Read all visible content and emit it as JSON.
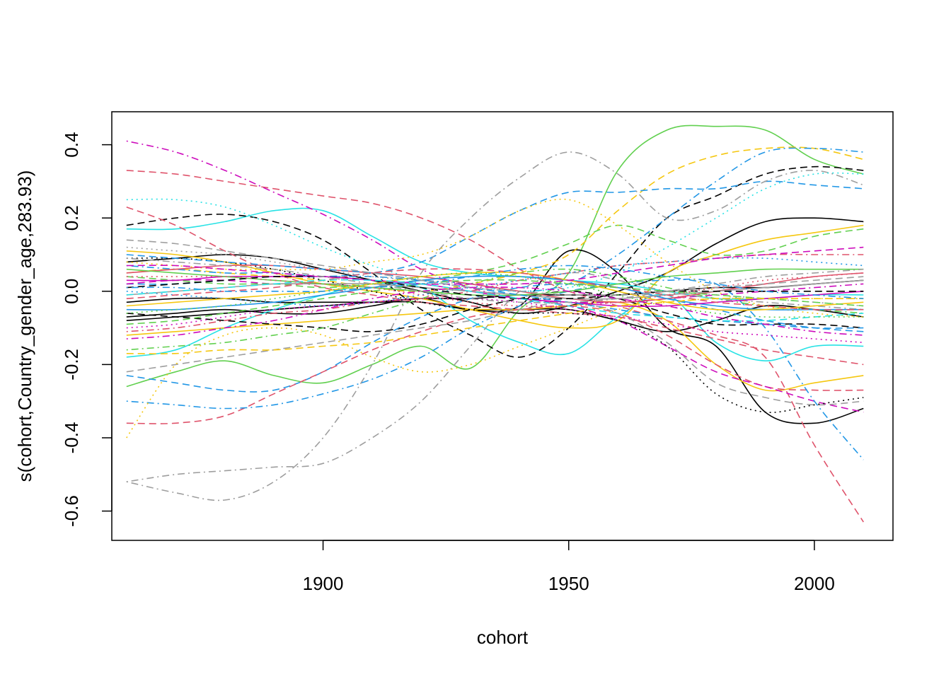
{
  "chart_data": {
    "type": "line",
    "title": "",
    "xlabel": "cohort",
    "ylabel": "s(cohort,Country_gender_age,283.93)",
    "xlim": [
      1857,
      2016
    ],
    "ylim": [
      -0.68,
      0.49
    ],
    "x_ticks": [
      1900,
      1950,
      2000
    ],
    "y_ticks": [
      -0.6,
      -0.4,
      -0.2,
      0.0,
      0.2,
      0.4
    ],
    "y_tick_labels": [
      "-0.6",
      "-0.4",
      "-0.2",
      "0.0",
      "0.2",
      "0.4"
    ],
    "grid": false,
    "legend": "none",
    "x": [
      1860,
      1870,
      1880,
      1890,
      1900,
      1910,
      1920,
      1930,
      1940,
      1950,
      1960,
      1970,
      1980,
      1990,
      2000,
      2010
    ],
    "series": [
      {
        "color": "#61d04f",
        "dash": "solid",
        "values": [
          -0.26,
          -0.22,
          -0.19,
          -0.23,
          -0.25,
          -0.2,
          -0.15,
          -0.21,
          -0.05,
          0.05,
          0.33,
          0.44,
          0.45,
          0.44,
          0.36,
          0.32
        ]
      },
      {
        "color": "#000000",
        "dash": "solid",
        "values": [
          -0.07,
          -0.06,
          -0.05,
          -0.06,
          -0.06,
          -0.04,
          -0.02,
          -0.05,
          -0.04,
          0.11,
          0.05,
          -0.1,
          -0.15,
          -0.33,
          -0.36,
          -0.32
        ]
      },
      {
        "color": "#000000",
        "dash": "solid",
        "values": [
          -0.08,
          -0.07,
          -0.06,
          -0.05,
          -0.04,
          -0.03,
          -0.02,
          -0.02,
          -0.01,
          -0.01,
          -0.01,
          0.0,
          0.01,
          0.01,
          0.02,
          0.03
        ]
      },
      {
        "color": "#000000",
        "dash": "solid",
        "values": [
          0.08,
          0.09,
          0.1,
          0.09,
          0.06,
          0.03,
          0.0,
          -0.03,
          -0.06,
          -0.04,
          0.0,
          0.05,
          0.13,
          0.19,
          0.2,
          0.19
        ]
      },
      {
        "color": "#000000",
        "dash": "solid",
        "values": [
          -0.03,
          -0.02,
          -0.02,
          -0.03,
          -0.03,
          -0.03,
          -0.03,
          -0.05,
          -0.05,
          -0.05,
          -0.08,
          -0.11,
          -0.08,
          -0.04,
          -0.05,
          -0.07
        ]
      },
      {
        "color": "#28e2e5",
        "dash": "solid",
        "values": [
          -0.18,
          -0.16,
          -0.1,
          -0.05,
          -0.01,
          0.02,
          0.01,
          -0.08,
          -0.14,
          -0.17,
          -0.07,
          -0.01,
          -0.14,
          -0.19,
          -0.15,
          -0.15
        ]
      },
      {
        "color": "#28e2e5",
        "dash": "solid",
        "values": [
          0.17,
          0.17,
          0.19,
          0.22,
          0.22,
          0.15,
          0.08,
          0.05,
          0.04,
          0.03,
          0.02,
          0.0,
          -0.02,
          -0.02,
          -0.01,
          -0.01
        ]
      },
      {
        "color": "#f5c710",
        "dash": "solid",
        "values": [
          0.11,
          0.1,
          0.08,
          0.05,
          0.02,
          0.0,
          -0.02,
          -0.05,
          -0.08,
          -0.1,
          -0.08,
          0.05,
          0.1,
          0.14,
          0.16,
          0.18
        ]
      },
      {
        "color": "#f5c710",
        "dash": "solid",
        "values": [
          -0.12,
          -0.11,
          -0.1,
          -0.09,
          -0.08,
          -0.07,
          -0.06,
          -0.05,
          -0.05,
          -0.04,
          -0.03,
          -0.08,
          -0.2,
          -0.27,
          -0.25,
          -0.23
        ]
      },
      {
        "color": "#000000",
        "dash": "dashed",
        "values": [
          0.18,
          0.2,
          0.21,
          0.19,
          0.14,
          0.05,
          -0.05,
          -0.12,
          -0.18,
          -0.1,
          0.05,
          0.2,
          0.26,
          0.32,
          0.34,
          0.33
        ]
      },
      {
        "color": "#000000",
        "dash": "dashed",
        "values": [
          -0.06,
          -0.07,
          -0.08,
          -0.09,
          -0.1,
          -0.11,
          -0.09,
          -0.05,
          -0.02,
          0.0,
          -0.02,
          -0.06,
          -0.09,
          -0.09,
          -0.09,
          -0.1
        ]
      },
      {
        "color": "#f5c710",
        "dash": "dashed",
        "values": [
          0.05,
          0.06,
          0.05,
          0.04,
          0.03,
          0.01,
          0.0,
          0.02,
          0.05,
          0.1,
          0.22,
          0.32,
          0.37,
          0.39,
          0.39,
          0.36
        ]
      },
      {
        "color": "#2297e6",
        "dash": "dashed",
        "values": [
          0.02,
          0.02,
          0.03,
          0.04,
          0.04,
          0.05,
          0.08,
          0.15,
          0.22,
          0.27,
          0.27,
          0.28,
          0.28,
          0.3,
          0.29,
          0.28
        ]
      },
      {
        "color": "#2297e6",
        "dash": "dashed",
        "values": [
          -0.23,
          -0.25,
          -0.27,
          -0.27,
          -0.22,
          -0.14,
          -0.07,
          -0.02,
          0.01,
          0.02,
          0.01,
          -0.02,
          -0.05,
          -0.08,
          -0.1,
          -0.11
        ]
      },
      {
        "color": "#df536b",
        "dash": "dashed",
        "values": [
          0.33,
          0.32,
          0.3,
          0.28,
          0.26,
          0.24,
          0.2,
          0.14,
          0.06,
          0.0,
          -0.04,
          -0.08,
          -0.12,
          -0.18,
          -0.42,
          -0.63
        ]
      },
      {
        "color": "#df536b",
        "dash": "dashed",
        "values": [
          0.23,
          0.18,
          0.11,
          0.05,
          0.01,
          -0.01,
          -0.03,
          -0.04,
          -0.05,
          -0.06,
          -0.07,
          -0.1,
          -0.13,
          -0.16,
          -0.18,
          -0.2
        ]
      },
      {
        "color": "#df536b",
        "dash": "dashed",
        "values": [
          -0.36,
          -0.36,
          -0.34,
          -0.28,
          -0.22,
          -0.16,
          -0.11,
          -0.07,
          -0.05,
          -0.04,
          -0.06,
          -0.12,
          -0.2,
          -0.26,
          -0.27,
          -0.27
        ]
      },
      {
        "color": "#cd0bbc",
        "dash": "dashed",
        "values": [
          0.02,
          0.03,
          0.03,
          0.02,
          0.02,
          0.01,
          0.0,
          -0.01,
          -0.02,
          -0.04,
          -0.08,
          -0.15,
          -0.22,
          -0.26,
          -0.3,
          -0.33
        ]
      },
      {
        "color": "#61d04f",
        "dash": "dashed",
        "values": [
          0.04,
          0.03,
          0.02,
          0.02,
          0.01,
          0.02,
          0.03,
          0.05,
          0.08,
          0.13,
          0.18,
          0.14,
          0.1,
          0.11,
          0.15,
          0.17
        ]
      },
      {
        "color": "#9e9e9e",
        "dash": "dashed",
        "values": [
          -0.22,
          -0.2,
          -0.18,
          -0.16,
          -0.14,
          -0.12,
          -0.1,
          -0.08,
          -0.05,
          -0.03,
          -0.06,
          -0.14,
          -0.25,
          -0.29,
          -0.31,
          -0.3
        ]
      },
      {
        "color": "#cd0bbc",
        "dash": "dashdot",
        "values": [
          0.41,
          0.38,
          0.33,
          0.27,
          0.21,
          0.14,
          0.06,
          0.01,
          -0.02,
          -0.03,
          -0.03,
          -0.02,
          -0.01,
          0.0,
          0.01,
          0.02
        ]
      },
      {
        "color": "#9e9e9e",
        "dash": "dashdot",
        "values": [
          -0.52,
          -0.55,
          -0.57,
          -0.52,
          -0.4,
          -0.2,
          0.05,
          0.2,
          0.31,
          0.38,
          0.32,
          0.2,
          0.22,
          0.3,
          0.33,
          0.29
        ]
      },
      {
        "color": "#9e9e9e",
        "dash": "dashdot",
        "values": [
          -0.52,
          -0.5,
          -0.49,
          -0.48,
          -0.47,
          -0.4,
          -0.3,
          -0.15,
          0.0,
          0.05,
          0.03,
          0.0,
          -0.02,
          -0.03,
          -0.04,
          -0.05
        ]
      },
      {
        "color": "#2297e6",
        "dash": "dashdot",
        "values": [
          -0.3,
          -0.31,
          -0.32,
          -0.31,
          -0.28,
          -0.24,
          -0.18,
          -0.1,
          -0.04,
          0.0,
          0.02,
          0.03,
          0.02,
          -0.1,
          -0.3,
          -0.46
        ]
      },
      {
        "color": "#2297e6",
        "dash": "dashdot",
        "values": [
          0.07,
          0.06,
          0.05,
          0.05,
          0.04,
          0.04,
          0.03,
          0.02,
          0.0,
          0.02,
          0.1,
          0.2,
          0.3,
          0.38,
          0.39,
          0.38
        ]
      },
      {
        "color": "#df536b",
        "dash": "dashdot",
        "values": [
          -0.11,
          -0.1,
          -0.08,
          -0.06,
          -0.05,
          -0.03,
          -0.02,
          0.0,
          0.03,
          0.05,
          0.07,
          0.08,
          0.09,
          0.1,
          0.1,
          0.1
        ]
      },
      {
        "color": "#61d04f",
        "dash": "dashdot",
        "values": [
          -0.16,
          -0.15,
          -0.14,
          -0.12,
          -0.1,
          -0.06,
          -0.02,
          0.02,
          0.05,
          0.06,
          0.04,
          0.01,
          -0.02,
          -0.04,
          -0.05,
          -0.06
        ]
      },
      {
        "color": "#f5c710",
        "dash": "dotted",
        "values": [
          -0.4,
          -0.2,
          -0.12,
          -0.1,
          -0.12,
          -0.18,
          -0.22,
          -0.2,
          -0.15,
          -0.1,
          -0.05,
          -0.03,
          -0.02,
          -0.02,
          -0.02,
          -0.02
        ]
      },
      {
        "color": "#f5c710",
        "dash": "dotted",
        "values": [
          0.08,
          0.07,
          0.06,
          0.06,
          0.06,
          0.08,
          0.1,
          0.15,
          0.22,
          0.25,
          0.18,
          0.08,
          0.0,
          -0.04,
          -0.06,
          -0.07
        ]
      },
      {
        "color": "#28e2e5",
        "dash": "dotted",
        "values": [
          0.25,
          0.25,
          0.23,
          0.18,
          0.12,
          0.07,
          0.03,
          0.01,
          0.0,
          0.01,
          0.05,
          0.12,
          0.2,
          0.28,
          0.32,
          0.32
        ]
      },
      {
        "color": "#000000",
        "dash": "dotted",
        "values": [
          0.09,
          0.09,
          0.08,
          0.06,
          0.03,
          0.0,
          -0.03,
          -0.05,
          -0.06,
          -0.06,
          -0.08,
          -0.15,
          -0.28,
          -0.33,
          -0.31,
          -0.29
        ]
      },
      {
        "color": "#9e9e9e",
        "dash": "dotted",
        "values": [
          0.12,
          0.11,
          0.1,
          0.08,
          0.06,
          0.04,
          0.03,
          0.02,
          0.02,
          0.02,
          0.01,
          0.0,
          -0.01,
          -0.02,
          -0.03,
          -0.04
        ]
      },
      {
        "color": "#2297e6",
        "dash": "dotted",
        "values": [
          0.0,
          -0.01,
          -0.02,
          -0.03,
          -0.04,
          -0.03,
          -0.01,
          0.01,
          0.03,
          0.05,
          0.07,
          0.08,
          0.09,
          0.09,
          0.08,
          0.07
        ]
      },
      {
        "color": "#cd0bbc",
        "dash": "dotted",
        "values": [
          -0.1,
          -0.09,
          -0.07,
          -0.05,
          -0.04,
          -0.03,
          -0.02,
          -0.02,
          -0.03,
          -0.05,
          -0.07,
          -0.09,
          -0.11,
          -0.12,
          -0.13,
          -0.14
        ]
      },
      {
        "color": "#df536b",
        "dash": "solid",
        "values": [
          0.05,
          0.06,
          0.07,
          0.07,
          0.06,
          0.05,
          0.04,
          0.02,
          0.0,
          -0.02,
          -0.03,
          -0.02,
          0.0,
          0.02,
          0.04,
          0.05
        ]
      },
      {
        "color": "#2297e6",
        "dash": "solid",
        "values": [
          -0.05,
          -0.05,
          -0.04,
          -0.03,
          -0.01,
          0.01,
          0.03,
          0.04,
          0.04,
          0.03,
          0.01,
          -0.02,
          -0.04,
          -0.05,
          -0.05,
          -0.05
        ]
      },
      {
        "color": "#cd0bbc",
        "dash": "solid",
        "values": [
          0.03,
          0.03,
          0.04,
          0.04,
          0.04,
          0.03,
          0.02,
          0.0,
          -0.02,
          -0.03,
          -0.04,
          -0.04,
          -0.03,
          -0.02,
          -0.01,
          0.0
        ]
      },
      {
        "color": "#9e9e9e",
        "dash": "solid",
        "values": [
          -0.01,
          0.0,
          0.01,
          0.02,
          0.02,
          0.02,
          0.01,
          0.0,
          -0.01,
          -0.02,
          -0.02,
          -0.01,
          0.0,
          0.01,
          0.02,
          0.03
        ]
      },
      {
        "color": "#61d04f",
        "dash": "solid",
        "values": [
          0.06,
          0.05,
          0.04,
          0.03,
          0.02,
          0.01,
          0.0,
          -0.01,
          -0.01,
          0.0,
          0.02,
          0.04,
          0.05,
          0.06,
          0.06,
          0.06
        ]
      },
      {
        "color": "#f5c710",
        "dash": "solid",
        "values": [
          -0.04,
          -0.03,
          -0.02,
          -0.01,
          0.0,
          0.02,
          0.04,
          0.05,
          0.05,
          0.03,
          0.0,
          -0.03,
          -0.05,
          -0.05,
          -0.04,
          -0.03
        ]
      },
      {
        "color": "#000000",
        "dash": "dashed",
        "values": [
          0.01,
          0.02,
          0.03,
          0.04,
          0.04,
          0.03,
          0.01,
          -0.01,
          -0.02,
          -0.02,
          -0.01,
          0.0,
          0.0,
          0.0,
          0.0,
          0.0
        ]
      },
      {
        "color": "#df536b",
        "dash": "dashed",
        "values": [
          -0.02,
          -0.01,
          0.0,
          0.01,
          0.03,
          0.05,
          0.06,
          0.06,
          0.05,
          0.03,
          0.01,
          -0.01,
          -0.03,
          -0.04,
          -0.05,
          -0.05
        ]
      },
      {
        "color": "#2297e6",
        "dash": "dashed",
        "values": [
          0.1,
          0.09,
          0.08,
          0.07,
          0.06,
          0.05,
          0.03,
          0.01,
          -0.01,
          -0.03,
          -0.05,
          -0.07,
          -0.08,
          -0.09,
          -0.1,
          -0.1
        ]
      },
      {
        "color": "#61d04f",
        "dash": "dashed",
        "values": [
          -0.09,
          -0.08,
          -0.06,
          -0.04,
          -0.02,
          0.0,
          0.02,
          0.03,
          0.03,
          0.02,
          0.01,
          0.0,
          -0.01,
          -0.02,
          -0.03,
          -0.04
        ]
      },
      {
        "color": "#cd0bbc",
        "dash": "dashed",
        "values": [
          0.07,
          0.07,
          0.06,
          0.05,
          0.04,
          0.03,
          0.02,
          0.02,
          0.02,
          0.03,
          0.05,
          0.07,
          0.09,
          0.1,
          0.11,
          0.12
        ]
      },
      {
        "color": "#f5c710",
        "dash": "dashed",
        "values": [
          -0.17,
          -0.17,
          -0.16,
          -0.16,
          -0.15,
          -0.14,
          -0.12,
          -0.1,
          -0.08,
          -0.06,
          -0.04,
          -0.03,
          -0.02,
          -0.02,
          -0.02,
          -0.02
        ]
      },
      {
        "color": "#9e9e9e",
        "dash": "dashed",
        "values": [
          0.14,
          0.13,
          0.11,
          0.09,
          0.07,
          0.05,
          0.03,
          0.01,
          0.0,
          -0.01,
          -0.01,
          0.0,
          0.01,
          0.02,
          0.03,
          0.04
        ]
      },
      {
        "color": "#28e2e5",
        "dash": "dashed",
        "values": [
          -0.01,
          0.0,
          0.01,
          0.02,
          0.03,
          0.03,
          0.02,
          0.0,
          -0.02,
          -0.04,
          -0.06,
          -0.07,
          -0.08,
          -0.08,
          -0.07,
          -0.06
        ]
      },
      {
        "color": "#df536b",
        "dash": "dotted",
        "values": [
          0.04,
          0.04,
          0.04,
          0.03,
          0.02,
          0.01,
          -0.01,
          -0.03,
          -0.04,
          -0.04,
          -0.03,
          -0.01,
          0.01,
          0.03,
          0.04,
          0.05
        ]
      },
      {
        "color": "#61d04f",
        "dash": "dotted",
        "values": [
          -0.06,
          -0.05,
          -0.04,
          -0.02,
          0.0,
          0.02,
          0.04,
          0.05,
          0.04,
          0.02,
          -0.01,
          -0.04,
          -0.06,
          -0.07,
          -0.07,
          -0.07
        ]
      },
      {
        "color": "#2297e6",
        "dash": "dashdot",
        "values": [
          0.01,
          0.01,
          0.0,
          0.0,
          0.0,
          0.01,
          0.02,
          0.04,
          0.06,
          0.07,
          0.06,
          0.04,
          0.02,
          0.0,
          -0.01,
          -0.02
        ]
      },
      {
        "color": "#cd0bbc",
        "dash": "dashdot",
        "values": [
          -0.13,
          -0.12,
          -0.1,
          -0.08,
          -0.05,
          -0.02,
          0.0,
          0.01,
          0.01,
          0.0,
          -0.02,
          -0.04,
          -0.07,
          -0.09,
          -0.11,
          -0.12
        ]
      },
      {
        "color": "#9e9e9e",
        "dash": "dashdot",
        "values": [
          0.09,
          0.08,
          0.07,
          0.06,
          0.04,
          0.02,
          0.0,
          -0.02,
          -0.03,
          -0.03,
          -0.02,
          0.0,
          0.02,
          0.04,
          0.05,
          0.06
        ]
      }
    ]
  }
}
